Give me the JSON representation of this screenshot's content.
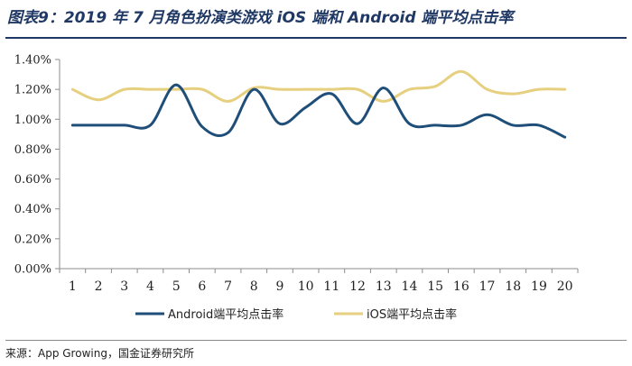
{
  "header": {
    "title": "图表9：2019 年 7 月角色扮演类游戏 iOS 端和 Android 端平均点击率"
  },
  "footer": {
    "source": "来源：App Growing，国金证券研究所"
  },
  "chart_data": {
    "type": "line",
    "title": "",
    "xlabel": "",
    "ylabel": "",
    "categories": [
      "1",
      "2",
      "3",
      "4",
      "5",
      "6",
      "7",
      "8",
      "9",
      "10",
      "11",
      "12",
      "13",
      "14",
      "15",
      "16",
      "17",
      "18",
      "19",
      "20"
    ],
    "yticks": [
      "0.00%",
      "0.20%",
      "0.40%",
      "0.60%",
      "0.80%",
      "1.00%",
      "1.20%",
      "1.40%"
    ],
    "ylim": [
      0,
      1.4
    ],
    "grid": false,
    "legend_position": "bottom",
    "series": [
      {
        "name": "Android端平均点击率",
        "color": "#1f4e79",
        "values": [
          0.96,
          0.96,
          0.96,
          0.96,
          1.23,
          0.95,
          0.91,
          1.2,
          0.97,
          1.08,
          1.17,
          0.97,
          1.21,
          0.97,
          0.96,
          0.96,
          1.03,
          0.96,
          0.96,
          0.88
        ]
      },
      {
        "name": "iOS端平均点击率",
        "color": "#e6cf7e",
        "values": [
          1.2,
          1.13,
          1.2,
          1.2,
          1.2,
          1.2,
          1.12,
          1.21,
          1.2,
          1.2,
          1.2,
          1.2,
          1.12,
          1.2,
          1.22,
          1.32,
          1.2,
          1.17,
          1.2,
          1.2
        ]
      }
    ]
  }
}
